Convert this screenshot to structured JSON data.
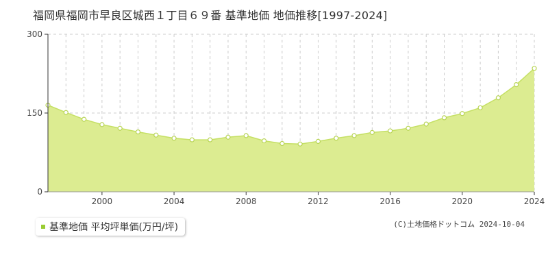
{
  "chart_data": {
    "type": "area",
    "title": "福岡県福岡市早良区城西１丁目６９番 基準地価 地価推移[1997-2024]",
    "xlabel": "",
    "ylabel": "",
    "x": [
      1997,
      1998,
      1999,
      2000,
      2001,
      2002,
      2003,
      2004,
      2005,
      2006,
      2007,
      2008,
      2009,
      2010,
      2011,
      2012,
      2013,
      2014,
      2015,
      2016,
      2017,
      2018,
      2019,
      2020,
      2021,
      2022,
      2023,
      2024
    ],
    "series": [
      {
        "name": "基準地価 平均坪単価(万円/坪)",
        "values": [
          165,
          151,
          138,
          128,
          121,
          114,
          108,
          102,
          99,
          99,
          104,
          107,
          97,
          92,
          91,
          96,
          102,
          107,
          113,
          116,
          121,
          129,
          141,
          149,
          160,
          179,
          204,
          235
        ]
      }
    ],
    "xlim": [
      1997,
      2024
    ],
    "ylim": [
      0,
      300
    ],
    "x_ticks": [
      "2000",
      "2004",
      "2008",
      "2012",
      "2016",
      "2020",
      "2024"
    ],
    "y_ticks": [
      "0",
      "150",
      "300"
    ],
    "grid": true,
    "legend_position": "bottom-left",
    "colors": {
      "fill": "#dcec91",
      "line": "#c5e064",
      "marker_stroke": "#b8d455",
      "marker_fill": "#ffffff",
      "legend_swatch": "#99cc33"
    }
  },
  "legend": {
    "label": "基準地価 平均坪単価(万円/坪)"
  },
  "copyright": "(C)土地価格ドットコム 2024-10-04"
}
